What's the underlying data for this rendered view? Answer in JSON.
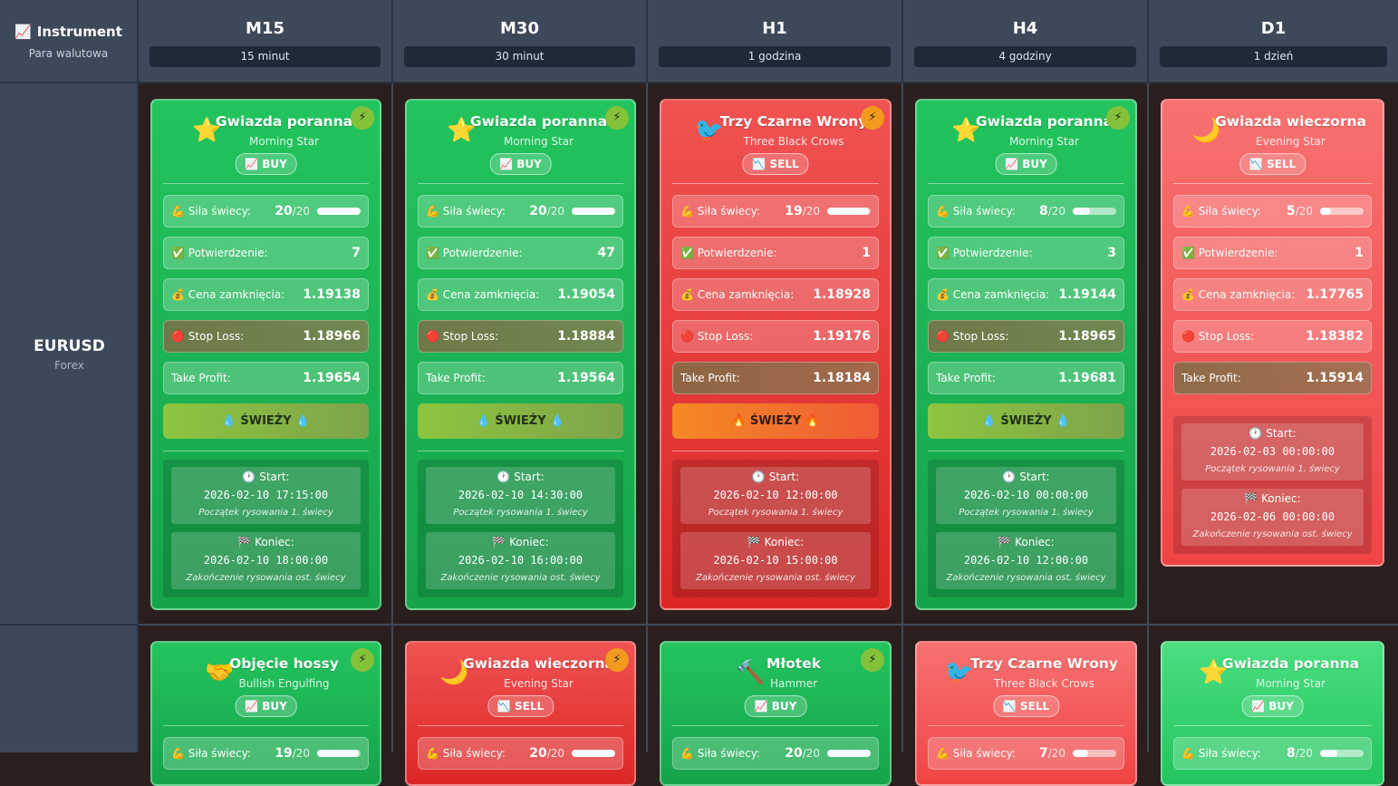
{
  "header": {
    "instrument_label": "Instrument",
    "instrument_icon": "📈",
    "instrument_sub": "Para walutowa",
    "timeframes": [
      {
        "name": "M15",
        "desc": "15 minut"
      },
      {
        "name": "M30",
        "desc": "30 minut"
      },
      {
        "name": "H1",
        "desc": "1 godzina"
      },
      {
        "name": "H4",
        "desc": "4 godziny"
      },
      {
        "name": "D1",
        "desc": "1 dzień"
      }
    ]
  },
  "labels": {
    "strength": "Siła świecy:",
    "confirm": "Potwierdzenie:",
    "close": "Cena zamknięcia:",
    "sl": "Stop Loss:",
    "tp": "Take Profit:",
    "fresh": "ŚWIEŻY",
    "start": "Start:",
    "end": "Koniec:",
    "start_note": "Początek rysowania 1. świecy",
    "end_note": "Zakończenie rysowania ost. świecy",
    "strength_max": "/20"
  },
  "rows": [
    {
      "pair": "EURUSD",
      "type": "Forex",
      "cards": [
        {
          "icon": "⭐",
          "title": "Gwiazda poranna",
          "subtitle": "Morning Star",
          "signal": "📈 BUY",
          "strength": "20",
          "confirm": "7",
          "close": "1.19138",
          "sl": "1.18966",
          "tp": "1.19654",
          "fresh": "💧 ŚWIEŻY 💧",
          "start": "2026-02-10 17:15:00",
          "end": "2026-02-10 18:00:00"
        },
        {
          "icon": "⭐",
          "title": "Gwiazda poranna",
          "subtitle": "Morning Star",
          "signal": "📈 BUY",
          "strength": "20",
          "confirm": "47",
          "close": "1.19054",
          "sl": "1.18884",
          "tp": "1.19564",
          "fresh": "💧 ŚWIEŻY 💧",
          "start": "2026-02-10 14:30:00",
          "end": "2026-02-10 16:00:00"
        },
        {
          "icon": "🐦",
          "title": "Trzy Czarne Wrony",
          "subtitle": "Three Black Crows",
          "signal": "📉 SELL",
          "strength": "19",
          "confirm": "1",
          "close": "1.18928",
          "sl": "1.19176",
          "tp": "1.18184",
          "fresh": "🔥 ŚWIEŻY 🔥",
          "start": "2026-02-10 12:00:00",
          "end": "2026-02-10 15:00:00"
        },
        {
          "icon": "⭐",
          "title": "Gwiazda poranna",
          "subtitle": "Morning Star",
          "signal": "📈 BUY",
          "strength": "8",
          "confirm": "3",
          "close": "1.19144",
          "sl": "1.18965",
          "tp": "1.19681",
          "fresh": "💧 ŚWIEŻY 💧",
          "start": "2026-02-10 00:00:00",
          "end": "2026-02-10 12:00:00"
        },
        {
          "icon": "🌙",
          "title": "Gwiazda wieczorna",
          "subtitle": "Evening Star",
          "signal": "📉 SELL",
          "strength": "5",
          "confirm": "1",
          "close": "1.17765",
          "sl": "1.18382",
          "tp": "1.15914",
          "start": "2026-02-03 00:00:00",
          "end": "2026-02-06 00:00:00"
        }
      ]
    },
    {
      "pair": "",
      "type": "",
      "cards": [
        {
          "icon": "🤝",
          "title": "Objęcie hossy",
          "subtitle": "Bullish Engulfing",
          "signal": "📈 BUY",
          "strength": "19"
        },
        {
          "icon": "🌙",
          "title": "Gwiazda wieczorna",
          "subtitle": "Evening Star",
          "signal": "📉 SELL",
          "strength": "20"
        },
        {
          "icon": "🔨",
          "title": "Młotek",
          "subtitle": "Hammer",
          "signal": "📈 BUY",
          "strength": "20"
        },
        {
          "icon": "🐦",
          "title": "Trzy Czarne Wrony",
          "subtitle": "Three Black Crows",
          "signal": "📉 SELL",
          "strength": "7"
        },
        {
          "icon": "⭐",
          "title": "Gwiazda poranna",
          "subtitle": "Morning Star",
          "signal": "📈 BUY",
          "strength": "8"
        }
      ]
    }
  ],
  "icons": {
    "bolt": "⚡",
    "strength": "💪",
    "confirm": "✅",
    "close": "💰",
    "sl": "🔴",
    "clock": "🕐",
    "flag": "🏁"
  },
  "colors": {
    "buy": "#22c55e",
    "sell": "#ef4444",
    "header": "#3d4859"
  }
}
